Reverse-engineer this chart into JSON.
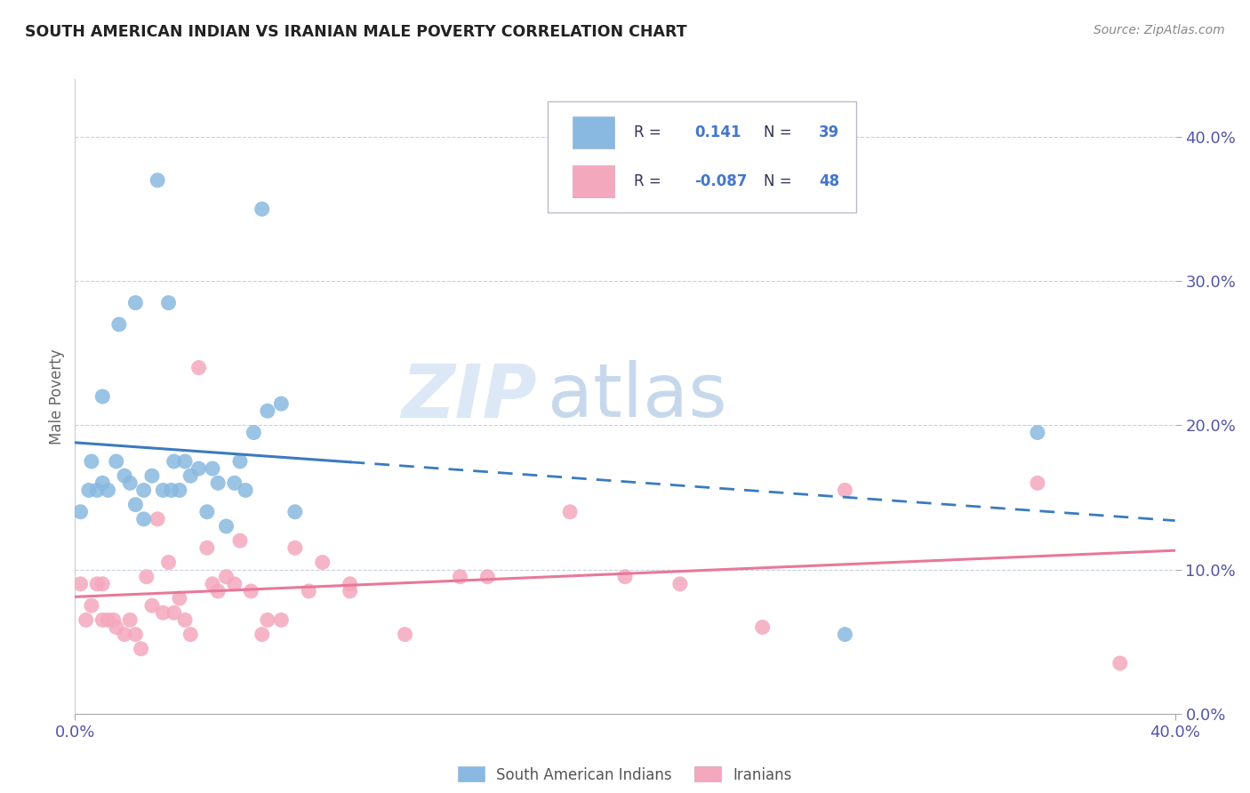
{
  "title": "SOUTH AMERICAN INDIAN VS IRANIAN MALE POVERTY CORRELATION CHART",
  "source": "Source: ZipAtlas.com",
  "ylabel": "Male Poverty",
  "legend_label1": "South American Indians",
  "legend_label2": "Iranians",
  "r1": 0.141,
  "n1": 39,
  "r2": -0.087,
  "n2": 48,
  "blue_color": "#89b9e0",
  "pink_color": "#f4a8be",
  "blue_line_color": "#3a7bbf",
  "pink_line_color": "#e87899",
  "watermark_color": "#dce8f5",
  "blue_points_x": [
    0.002,
    0.005,
    0.006,
    0.008,
    0.01,
    0.01,
    0.012,
    0.015,
    0.016,
    0.018,
    0.02,
    0.022,
    0.022,
    0.025,
    0.025,
    0.028,
    0.03,
    0.032,
    0.034,
    0.035,
    0.036,
    0.038,
    0.04,
    0.042,
    0.045,
    0.048,
    0.05,
    0.052,
    0.055,
    0.058,
    0.06,
    0.062,
    0.065,
    0.068,
    0.07,
    0.075,
    0.08,
    0.28,
    0.35
  ],
  "blue_points_y": [
    0.14,
    0.155,
    0.175,
    0.155,
    0.22,
    0.16,
    0.155,
    0.175,
    0.27,
    0.165,
    0.16,
    0.285,
    0.145,
    0.155,
    0.135,
    0.165,
    0.37,
    0.155,
    0.285,
    0.155,
    0.175,
    0.155,
    0.175,
    0.165,
    0.17,
    0.14,
    0.17,
    0.16,
    0.13,
    0.16,
    0.175,
    0.155,
    0.195,
    0.35,
    0.21,
    0.215,
    0.14,
    0.055,
    0.195
  ],
  "pink_points_x": [
    0.002,
    0.004,
    0.006,
    0.008,
    0.01,
    0.01,
    0.012,
    0.014,
    0.015,
    0.018,
    0.02,
    0.022,
    0.024,
    0.026,
    0.028,
    0.03,
    0.032,
    0.034,
    0.036,
    0.038,
    0.04,
    0.042,
    0.045,
    0.048,
    0.05,
    0.052,
    0.055,
    0.058,
    0.06,
    0.064,
    0.068,
    0.07,
    0.075,
    0.08,
    0.085,
    0.09,
    0.1,
    0.1,
    0.12,
    0.14,
    0.15,
    0.18,
    0.2,
    0.22,
    0.25,
    0.28,
    0.35,
    0.38
  ],
  "pink_points_y": [
    0.09,
    0.065,
    0.075,
    0.09,
    0.09,
    0.065,
    0.065,
    0.065,
    0.06,
    0.055,
    0.065,
    0.055,
    0.045,
    0.095,
    0.075,
    0.135,
    0.07,
    0.105,
    0.07,
    0.08,
    0.065,
    0.055,
    0.24,
    0.115,
    0.09,
    0.085,
    0.095,
    0.09,
    0.12,
    0.085,
    0.055,
    0.065,
    0.065,
    0.115,
    0.085,
    0.105,
    0.09,
    0.085,
    0.055,
    0.095,
    0.095,
    0.14,
    0.095,
    0.09,
    0.06,
    0.155,
    0.16,
    0.035
  ],
  "xtick_labels": [
    "0.0%",
    "40.0%"
  ],
  "xtick_positions": [
    0.0,
    0.4
  ],
  "ytick_labels": [
    "0.0%",
    "10.0%",
    "20.0%",
    "30.0%",
    "40.0%"
  ],
  "ytick_positions": [
    0.0,
    0.1,
    0.2,
    0.3,
    0.4
  ],
  "xlim": [
    0.0,
    0.4
  ],
  "ylim": [
    0.0,
    0.44
  ],
  "blue_line_solid_end": 0.1,
  "blue_line_dash_start": 0.1
}
